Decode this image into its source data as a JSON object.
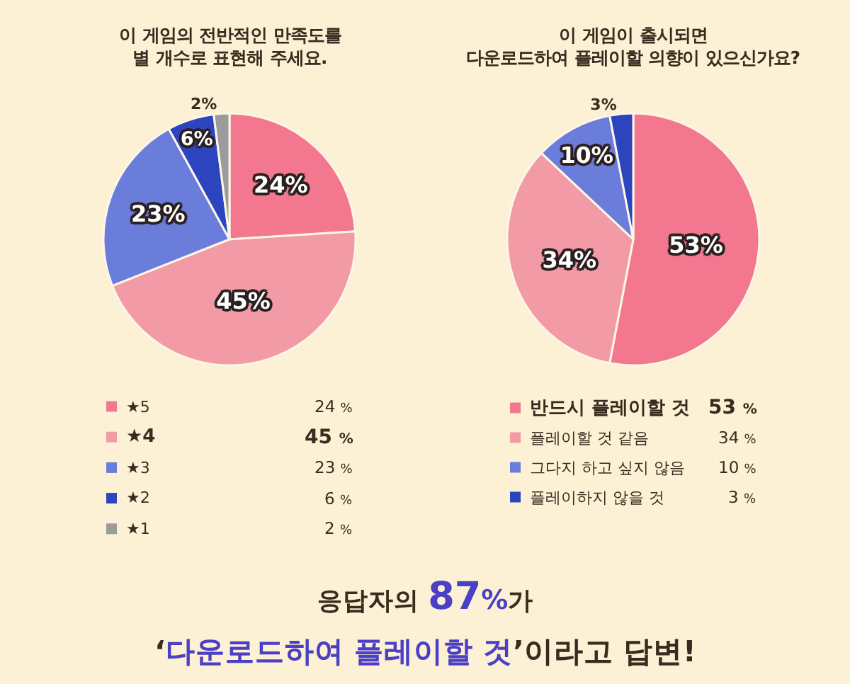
{
  "chart_data": [
    {
      "type": "pie",
      "title": "이 게임의 전반적인 만족도를\n별 개수로 표현해 주세요.",
      "categories": [
        "★5",
        "★4",
        "★3",
        "★2",
        "★1"
      ],
      "values": [
        24,
        45,
        23,
        6,
        2
      ],
      "colors": [
        "#f3788f",
        "#f29aa5",
        "#6a7ddb",
        "#2c45bf",
        "#9b9b9b"
      ],
      "value_labels": [
        "24%",
        "45%",
        "23%",
        "6%",
        "2%"
      ],
      "legend": "bottom"
    },
    {
      "type": "pie",
      "title": "이 게임이 출시되면\n다운로드하여 플레이할 의향이 있으신가요?",
      "categories": [
        "반드시 플레이할 것",
        "플레이할 것 같음",
        "그다지 하고 싶지 않음",
        "플레이하지 않을 것"
      ],
      "values": [
        53,
        34,
        10,
        3
      ],
      "colors": [
        "#f3788f",
        "#f29aa5",
        "#6a7ddb",
        "#2c45bf"
      ],
      "value_labels": [
        "53%",
        "34%",
        "10%",
        "3%"
      ],
      "legend": "bottom"
    },
    {
      "type": "other",
      "annotations": [
        "응답자의 87%가",
        "‘다운로드하여 플레이할 것’이라고 답변!"
      ]
    }
  ]
}
